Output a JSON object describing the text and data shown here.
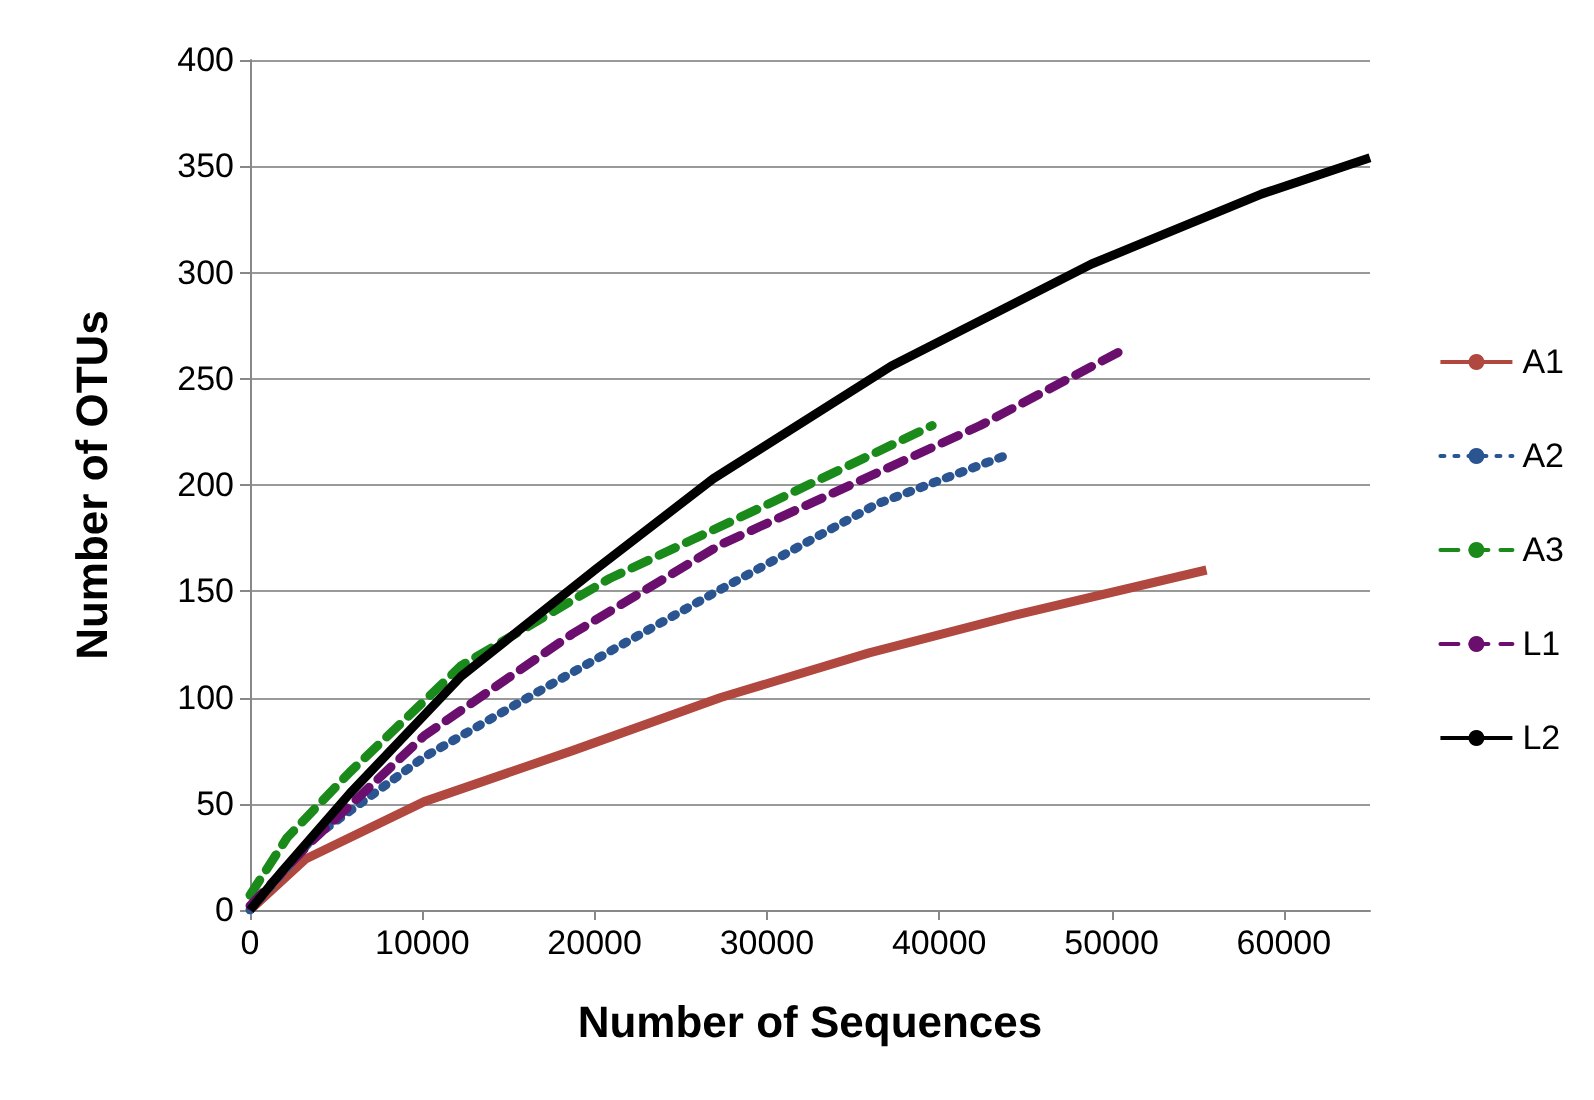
{
  "chart_data": {
    "type": "line",
    "xlabel": "Number of Sequences",
    "ylabel": "Number of OTUs",
    "xlim": [
      0,
      65000
    ],
    "xticks": [
      0,
      10000,
      20000,
      30000,
      40000,
      50000,
      60000
    ],
    "ylim": [
      0,
      400
    ],
    "yticks": [
      0,
      50,
      100,
      150,
      200,
      250,
      300,
      350,
      400
    ],
    "grid": "y",
    "legend": "right",
    "marker": "none",
    "series": [
      {
        "name": "A1",
        "color": "#b0483f",
        "line_style": "solid",
        "x": [
          0,
          3230,
          10110,
          18720,
          27320,
          35930,
          44530,
          55510
        ],
        "values": [
          0,
          24,
          51,
          75,
          100,
          121,
          139,
          160
        ]
      },
      {
        "name": "A2",
        "color": "#2a5590",
        "line_style": "dotted",
        "x": [
          0,
          3660,
          10110,
          17430,
          26890,
          36360,
          43890
        ],
        "values": [
          0,
          34,
          72,
          106,
          149,
          191,
          214
        ]
      },
      {
        "name": "A3",
        "color": "#1a8a1a",
        "line_style": "dashed",
        "x": [
          0,
          2150,
          5810,
          12260,
          20870,
          30330,
          39590
        ],
        "values": [
          7,
          34,
          65,
          115,
          156,
          192,
          228
        ]
      },
      {
        "name": "L1",
        "color": "#6b0f6e",
        "line_style": "dashed",
        "x": [
          0,
          3660,
          10110,
          18720,
          27320,
          35930,
          42380,
          50990
        ],
        "values": [
          2,
          33,
          82,
          130,
          172,
          204,
          228,
          265
        ]
      },
      {
        "name": "L2",
        "color": "#000000",
        "line_style": "solid",
        "x": [
          0,
          1940,
          5810,
          12260,
          20010,
          26890,
          37220,
          48840,
          58730,
          65000
        ],
        "values": [
          0,
          19,
          55,
          110,
          160,
          203,
          256,
          304,
          337,
          354
        ]
      }
    ]
  }
}
